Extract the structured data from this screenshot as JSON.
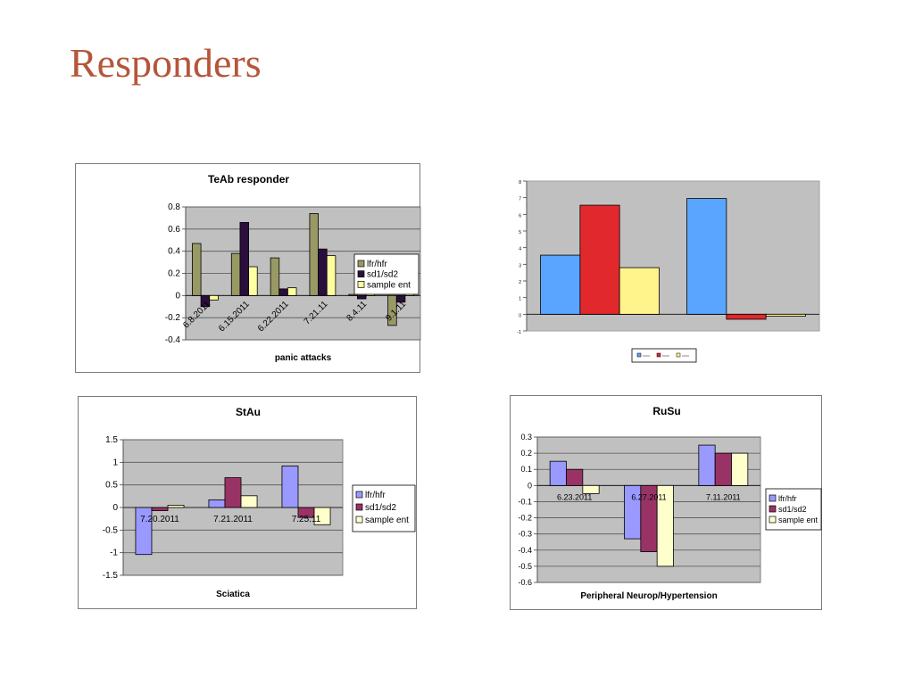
{
  "slide": {
    "title": "Responders"
  },
  "chart_data": [
    {
      "id": "c1",
      "type": "bar",
      "title": "TeAb responder",
      "xlabel": "panic attacks",
      "ylim": [
        -0.4,
        0.8
      ],
      "yticks": [
        -0.4,
        -0.2,
        0,
        0.2,
        0.4,
        0.6,
        0.8
      ],
      "categories": [
        "6.8.2011",
        "6.15.2011",
        "6.22.2011",
        "7.21.11",
        "8.4.11",
        "9.1.11"
      ],
      "grid": true,
      "legend": "right",
      "series": [
        {
          "name": "lfr/hfr",
          "color": "#999966",
          "values": [
            0.47,
            0.38,
            0.34,
            0.74,
            0.01,
            -0.27
          ]
        },
        {
          "name": "sd1/sd2",
          "color": "#2a0e3c",
          "values": [
            -0.1,
            0.66,
            0.06,
            0.42,
            -0.03,
            -0.06
          ]
        },
        {
          "name": "sample ent",
          "color": "#ffffa0",
          "values": [
            -0.04,
            0.26,
            0.07,
            0.36,
            0.02,
            0.07
          ]
        }
      ]
    },
    {
      "id": "c2",
      "type": "bar",
      "title": "",
      "ylim": [
        -1,
        8
      ],
      "yticks": [
        -1,
        0,
        1,
        2,
        3,
        4,
        5,
        6,
        7,
        8
      ],
      "categories": [
        "",
        ""
      ],
      "grid": false,
      "legend": "bottom",
      "series": [
        {
          "name": "",
          "color": "#5aa5ff",
          "values": [
            3.55,
            6.95
          ]
        },
        {
          "name": "",
          "color": "#e0282d",
          "values": [
            6.55,
            -0.3
          ]
        },
        {
          "name": "",
          "color": "#fff38c",
          "values": [
            2.8,
            -0.12
          ]
        }
      ]
    },
    {
      "id": "c3",
      "type": "bar",
      "title": "StAu",
      "xlabel": "Sciatica",
      "ylim": [
        -1.5,
        1.5
      ],
      "yticks": [
        -1.5,
        -1,
        -0.5,
        0,
        0.5,
        1,
        1.5
      ],
      "categories": [
        "7.20.2011",
        "7.21.2011",
        "7.25.11"
      ],
      "grid": true,
      "legend": "right",
      "series": [
        {
          "name": "lfr/hfr",
          "color": "#9999ff",
          "values": [
            -1.04,
            0.17,
            0.92
          ]
        },
        {
          "name": "sd1/sd2",
          "color": "#993366",
          "values": [
            -0.07,
            0.66,
            -0.22
          ]
        },
        {
          "name": "sample ent",
          "color": "#ffffcc",
          "values": [
            0.05,
            0.26,
            -0.38
          ]
        }
      ]
    },
    {
      "id": "c4",
      "type": "bar",
      "title": "RuSu",
      "xlabel": "Peripheral Neurop/Hypertension",
      "ylim": [
        -0.6,
        0.3
      ],
      "yticks": [
        -0.6,
        -0.5,
        -0.4,
        -0.3,
        -0.2,
        -0.1,
        0,
        0.1,
        0.2,
        0.3
      ],
      "categories": [
        "6.23.2011",
        "6.27.2011",
        "7.11.2011"
      ],
      "grid": true,
      "legend": "right",
      "series": [
        {
          "name": "lfr/hfr",
          "color": "#9999ff",
          "values": [
            0.15,
            -0.33,
            0.25
          ]
        },
        {
          "name": "sd1/sd2",
          "color": "#993366",
          "values": [
            0.1,
            -0.41,
            0.2
          ]
        },
        {
          "name": "sample ent",
          "color": "#ffffcc",
          "values": [
            -0.05,
            -0.5,
            0.2
          ]
        }
      ]
    }
  ]
}
